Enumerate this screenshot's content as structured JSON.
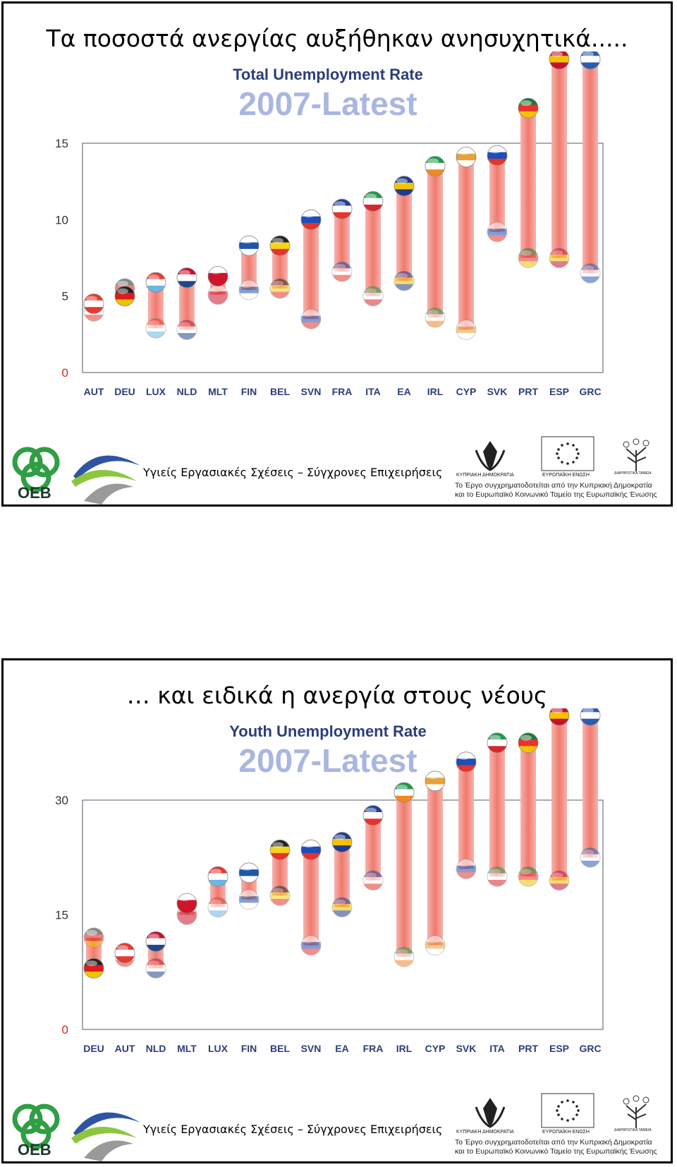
{
  "slides": [
    {
      "title": "Τα ποσοστά ανεργίας αυξήθηκαν ανησυχητικά.....",
      "chart_data": {
        "type": "range-bar",
        "title": "Total Unemployment Rate",
        "subtitle": "2007-Latest",
        "yticks": [
          0,
          5,
          10,
          15
        ],
        "ylim": [
          0,
          15
        ],
        "categories": [
          "AUT",
          "DEU",
          "LUX",
          "NLD",
          "MLT",
          "FIN",
          "BEL",
          "SVN",
          "FRA",
          "ITA",
          "EA",
          "IRL",
          "CYP",
          "SVK",
          "PRT",
          "ESP",
          "GRC"
        ],
        "start_2007": [
          4.0,
          5.5,
          2.9,
          2.8,
          5.1,
          5.4,
          5.5,
          3.5,
          6.6,
          5.0,
          6.0,
          3.6,
          2.8,
          9.2,
          7.5,
          7.5,
          6.5
        ],
        "latest": [
          4.5,
          5.0,
          5.9,
          6.2,
          6.3,
          8.3,
          8.3,
          10.0,
          10.7,
          11.2,
          12.2,
          13.5,
          14.1,
          14.2,
          17.3,
          20.5,
          20.5
        ]
      },
      "flag_colors": {
        "AUT": [
          "#e8382f",
          "#ffffff",
          "#e8382f"
        ],
        "DEU": [
          "#222222",
          "#dd1c1c",
          "#f4c300"
        ],
        "LUX": [
          "#e8382f",
          "#ffffff",
          "#6ab6e6"
        ],
        "NLD": [
          "#c8102e",
          "#ffffff",
          "#21468b"
        ],
        "MLT": [
          "#ffffff",
          "#cf142b",
          "#cf142b"
        ],
        "FIN": [
          "#ffffff",
          "#1e57a8",
          "#ffffff"
        ],
        "BEL": [
          "#222222",
          "#f7d31c",
          "#e8332a"
        ],
        "SVN": [
          "#ffffff",
          "#1c50b8",
          "#e8322a"
        ],
        "FRA": [
          "#1d3e9a",
          "#ffffff",
          "#e8322a"
        ],
        "ITA": [
          "#1e9a4a",
          "#ffffff",
          "#d8262e"
        ],
        "EA": [
          "#1d3c8f",
          "#f4c300",
          "#1d3c8f"
        ],
        "IRL": [
          "#1e9a4a",
          "#ffffff",
          "#f08a24"
        ],
        "CYP": [
          "#ffffff",
          "#e7a23a",
          "#ffffff"
        ],
        "SVK": [
          "#ffffff",
          "#1c50b8",
          "#e8322a"
        ],
        "PRT": [
          "#1e7a36",
          "#e8322a",
          "#f4c300"
        ],
        "ESP": [
          "#c8102e",
          "#f4c300",
          "#c8102e"
        ],
        "GRC": [
          "#2a5bb3",
          "#ffffff",
          "#2a5bb3"
        ]
      }
    },
    {
      "title": "… και ειδικά η ανεργία στους νέους",
      "chart_data": {
        "type": "range-bar",
        "title": "Youth Unemployment Rate",
        "subtitle": "2007-Latest",
        "yticks": [
          0,
          15,
          30
        ],
        "ylim": [
          0,
          30
        ],
        "categories": [
          "DEU",
          "AUT",
          "NLD",
          "MLT",
          "LUX",
          "FIN",
          "BEL",
          "SVN",
          "EA",
          "FRA",
          "IRL",
          "CYP",
          "SVK",
          "ITA",
          "PRT",
          "ESP",
          "GRC"
        ],
        "start_2007": [
          12.0,
          9.5,
          8.0,
          15.0,
          16.0,
          17.0,
          17.5,
          11.0,
          16.0,
          19.5,
          9.5,
          11.0,
          21.0,
          20.0,
          20.0,
          19.5,
          22.5
        ],
        "latest": [
          8.0,
          10.0,
          11.5,
          16.5,
          20.0,
          20.5,
          23.5,
          23.5,
          24.5,
          28.0,
          31.0,
          32.5,
          35.0,
          37.5,
          37.5,
          42.0,
          42.0
        ]
      },
      "flag_colors": {
        "DEU": [
          "#222222",
          "#dd1c1c",
          "#f4c300"
        ],
        "AUT": [
          "#e8382f",
          "#ffffff",
          "#e8382f"
        ],
        "NLD": [
          "#c8102e",
          "#ffffff",
          "#21468b"
        ],
        "MLT": [
          "#ffffff",
          "#cf142b",
          "#cf142b"
        ],
        "LUX": [
          "#e8382f",
          "#ffffff",
          "#6ab6e6"
        ],
        "FIN": [
          "#ffffff",
          "#1e57a8",
          "#ffffff"
        ],
        "BEL": [
          "#222222",
          "#f7d31c",
          "#e8332a"
        ],
        "SVN": [
          "#ffffff",
          "#1c50b8",
          "#e8322a"
        ],
        "EA": [
          "#1d3c8f",
          "#f4c300",
          "#1d3c8f"
        ],
        "FRA": [
          "#1d3e9a",
          "#ffffff",
          "#e8322a"
        ],
        "IRL": [
          "#1e9a4a",
          "#ffffff",
          "#f08a24"
        ],
        "CYP": [
          "#ffffff",
          "#e7a23a",
          "#ffffff"
        ],
        "SVK": [
          "#ffffff",
          "#1c50b8",
          "#e8322a"
        ],
        "ITA": [
          "#1e9a4a",
          "#ffffff",
          "#d8262e"
        ],
        "PRT": [
          "#1e7a36",
          "#e8322a",
          "#f4c300"
        ],
        "ESP": [
          "#c8102e",
          "#f4c300",
          "#c8102e"
        ],
        "GRC": [
          "#2a5bb3",
          "#ffffff",
          "#2a5bb3"
        ]
      }
    }
  ],
  "footer": {
    "oeb": "OEB",
    "tagline": "Υγιείς Εργασιακές Σχέσεις – Σύγχρονες Επιχειρήσεις",
    "cyprus_label": "ΚΥΠΡΙΑΚΗ ΔΗΜΟΚΡΑΤΙΑ",
    "eu_label": "ΕΥΡΩΠΑΪΚΗ ΕΝΩΣΗ",
    "funds_label": "ΔΙΑΡΘΡΩΤΙΚΑ ΤΑΜΕΙΑ",
    "cofinance_line1": "Το Έργο συγχρηματοδοτείται από την Κυπριακή Δημοκρατία",
    "cofinance_line2": "και το Ευρωπαϊκό Κοινωνικό Ταμείο της Ευρωπαϊκής Ένωσης"
  }
}
